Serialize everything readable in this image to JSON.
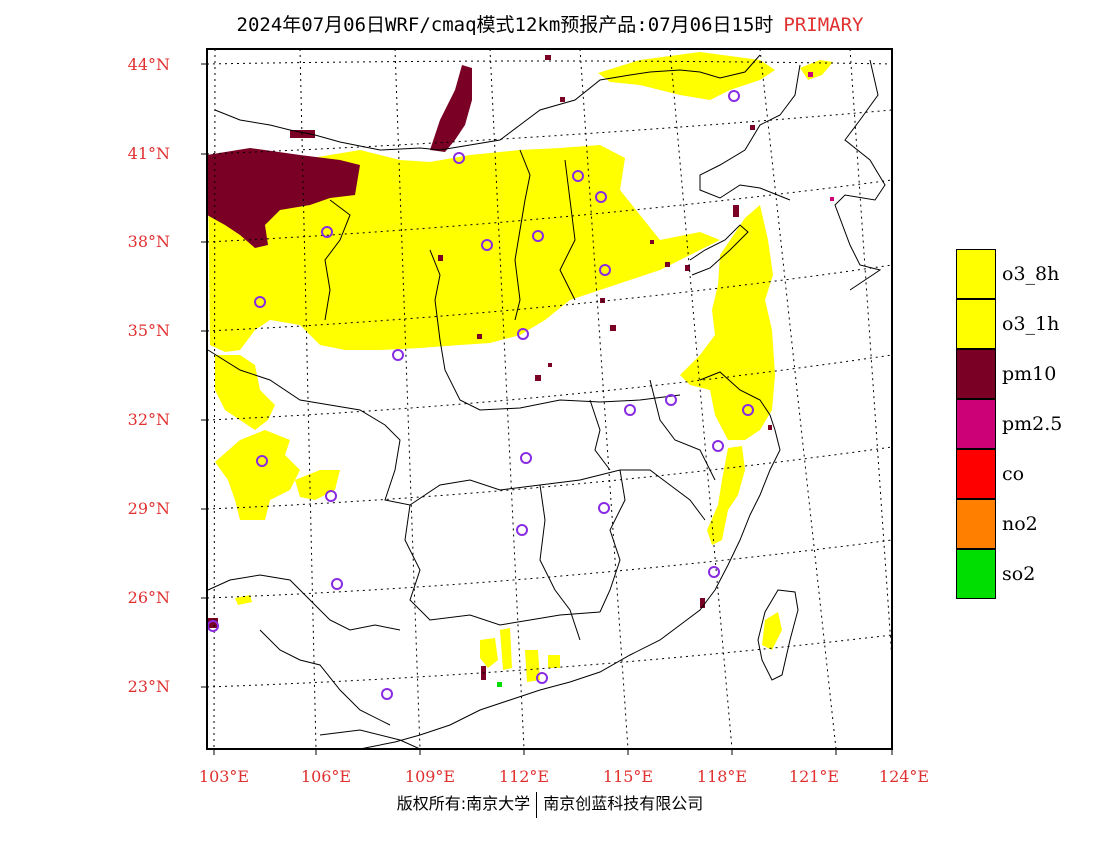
{
  "title": {
    "main": "2024年07月06日WRF/cmaq模式12km预报产品:07月06日15时",
    "tag": "PRIMARY"
  },
  "axes": {
    "lat_labels": [
      "44°N",
      "41°N",
      "38°N",
      "35°N",
      "32°N",
      "29°N",
      "26°N",
      "23°N"
    ],
    "lon_labels": [
      "103°E",
      "106°E",
      "109°E",
      "112°E",
      "115°E",
      "118°E",
      "121°E",
      "124°E"
    ]
  },
  "legend": [
    {
      "label": "o3_8h",
      "color": "#ffff00"
    },
    {
      "label": "o3_1h",
      "color": "#ffff00"
    },
    {
      "label": "pm10",
      "color": "#7a0025"
    },
    {
      "label": "pm2.5",
      "color": "#cc0077"
    },
    {
      "label": "co",
      "color": "#ff0000"
    },
    {
      "label": "no2",
      "color": "#ff7f00"
    },
    {
      "label": "so2",
      "color": "#00dd00"
    }
  ],
  "footer": {
    "left": "版权所有:南京大学",
    "right": "南京创蓝科技有限公司"
  },
  "colors": {
    "label_red": "#e03030",
    "station_marker": "#8a2be2"
  },
  "map_layers": {
    "pollutant_regions": [
      "o3_8h",
      "pm10",
      "pm2.5",
      "so2"
    ],
    "station_marker_icon": "circle-marker-icon"
  }
}
